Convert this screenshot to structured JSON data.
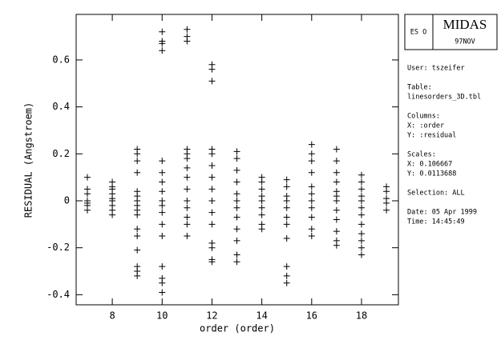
{
  "chart_data": {
    "type": "scatter",
    "xlabel": "order (order)",
    "ylabel": "RESIDUAL (Angstroem)",
    "xlim": [
      6.55,
      19.48
    ],
    "ylim": [
      -0.443,
      0.794
    ],
    "xticks": [
      8,
      10,
      12,
      14,
      16,
      18
    ],
    "yticks": [
      -0.4,
      -0.2,
      0,
      0.2,
      0.4,
      0.6
    ],
    "marker": "+",
    "color": "#000000",
    "x": [
      7,
      7,
      7,
      7,
      7,
      7,
      7,
      8,
      8,
      8,
      8,
      8,
      8,
      8,
      8,
      8,
      9,
      9,
      9,
      9,
      9,
      9,
      9,
      9,
      9,
      9,
      9,
      9,
      9,
      9,
      9,
      9,
      10,
      10,
      10,
      10,
      10,
      10,
      10,
      10,
      10,
      10,
      10,
      10,
      10,
      10,
      10,
      10,
      10,
      11,
      11,
      11,
      11,
      11,
      11,
      11,
      11,
      11,
      11,
      11,
      11,
      11,
      11,
      12,
      12,
      12,
      12,
      12,
      12,
      12,
      12,
      12,
      12,
      12,
      12,
      12,
      12,
      12,
      13,
      13,
      13,
      13,
      13,
      13,
      13,
      13,
      13,
      13,
      13,
      13,
      14,
      14,
      14,
      14,
      14,
      14,
      14,
      14,
      14,
      15,
      15,
      15,
      15,
      15,
      15,
      15,
      15,
      15,
      15,
      15,
      16,
      16,
      16,
      16,
      16,
      16,
      16,
      16,
      16,
      16,
      16,
      17,
      17,
      17,
      17,
      17,
      17,
      17,
      17,
      17,
      17,
      17,
      17,
      18,
      18,
      18,
      18,
      18,
      18,
      18,
      18,
      18,
      18,
      18,
      18,
      19,
      19,
      19,
      19,
      19
    ],
    "values": [
      0.1,
      0.05,
      0.03,
      0,
      -0.01,
      -0.02,
      -0.04,
      0.08,
      0.06,
      0.05,
      0.03,
      0.01,
      0,
      -0.02,
      -0.04,
      -0.06,
      0.22,
      0.2,
      0.17,
      0.12,
      0.04,
      0.02,
      0,
      -0.02,
      -0.04,
      -0.06,
      -0.12,
      -0.15,
      -0.21,
      -0.28,
      -0.3,
      -0.32,
      0.72,
      0.68,
      0.67,
      0.64,
      0.17,
      0.12,
      0.08,
      0.04,
      0,
      -0.02,
      -0.05,
      -0.1,
      -0.15,
      -0.28,
      -0.33,
      -0.35,
      -0.39,
      0.73,
      0.7,
      0.68,
      0.22,
      0.2,
      0.18,
      0.14,
      0.1,
      0.05,
      0,
      -0.03,
      -0.07,
      -0.1,
      -0.15,
      0.58,
      0.56,
      0.51,
      0.22,
      0.2,
      0.15,
      0.1,
      0.05,
      0,
      -0.05,
      -0.1,
      -0.18,
      -0.2,
      -0.25,
      -0.26,
      0.21,
      0.18,
      0.13,
      0.08,
      0.03,
      0,
      -0.03,
      -0.07,
      -0.12,
      -0.17,
      -0.23,
      -0.26,
      0.1,
      0.08,
      0.05,
      0.02,
      0,
      -0.03,
      -0.06,
      -0.1,
      -0.12,
      0.09,
      0.06,
      0.02,
      0,
      -0.03,
      -0.07,
      -0.1,
      -0.16,
      -0.28,
      -0.32,
      -0.35,
      0.24,
      0.2,
      0.17,
      0.12,
      0.06,
      0.03,
      0,
      -0.03,
      -0.07,
      -0.12,
      -0.15,
      0.22,
      0.17,
      0.12,
      0.08,
      0.04,
      0.02,
      0,
      -0.04,
      -0.08,
      -0.13,
      -0.17,
      -0.19,
      0.11,
      0.08,
      0.05,
      0.02,
      0,
      -0.03,
      -0.06,
      -0.1,
      -0.14,
      -0.17,
      -0.2,
      -0.23,
      0.06,
      0.04,
      0.01,
      -0.01,
      -0.04
    ]
  },
  "panel": {
    "logo": "ES O",
    "title": "MIDAS",
    "version": "97NOV",
    "lines": [
      "User: tszeifer",
      "Table:",
      "linesorders_3D.tbl",
      "Columns:",
      "X: :order",
      "Y: :residual",
      "Scales:",
      "X:  0.106667",
      "Y:  0.0113688",
      "Selection:   ALL",
      "Date: 05 Apr 1999",
      "Time:  14:45:49"
    ]
  }
}
